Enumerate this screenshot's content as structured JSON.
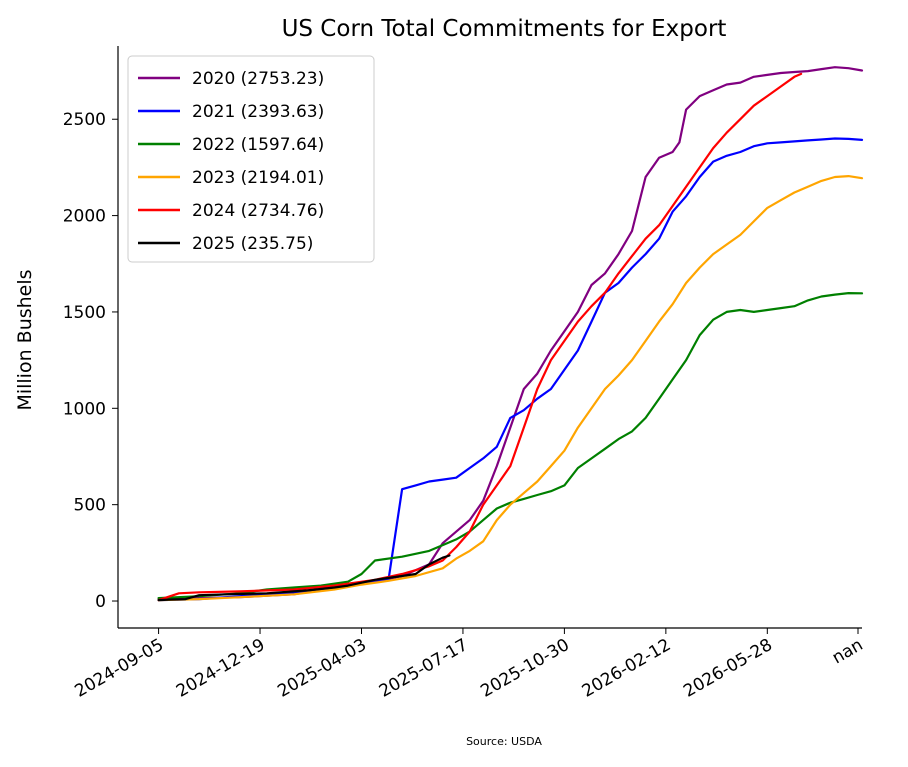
{
  "chart_data": {
    "type": "line",
    "title": "US Corn Total Commitments for Export",
    "ylabel": "Million Bushels",
    "xlabel": "",
    "source": "Source: USDA",
    "ylim": [
      -140,
      2880
    ],
    "yticks": [
      0,
      500,
      1000,
      1500,
      2000,
      2500
    ],
    "xlim": [
      -3,
      52
    ],
    "xticks": [
      {
        "pos": 0,
        "label": "2024-09-05"
      },
      {
        "pos": 7.5,
        "label": "2024-12-19"
      },
      {
        "pos": 15,
        "label": "2025-04-03"
      },
      {
        "pos": 22.5,
        "label": "2025-07-17"
      },
      {
        "pos": 30,
        "label": "2025-10-30"
      },
      {
        "pos": 37.5,
        "label": "2026-02-12"
      },
      {
        "pos": 45,
        "label": "2026-05-28"
      },
      {
        "pos": 52.5,
        "label": "nan"
      }
    ],
    "legend_position": "top-left",
    "grid": false,
    "series": [
      {
        "name": "2020 (2753.23)",
        "color": "#800080",
        "x": [
          0,
          3,
          6,
          10,
          13,
          16,
          18,
          20,
          21,
          23,
          24,
          25,
          26,
          27,
          28,
          29,
          30,
          31,
          32,
          33,
          34,
          35,
          36,
          37,
          38,
          38.5,
          39,
          40,
          41,
          42,
          43,
          44,
          45,
          46,
          47,
          48,
          49,
          50,
          51,
          52
        ],
        "y": [
          10,
          15,
          20,
          35,
          70,
          100,
          130,
          190,
          300,
          420,
          520,
          700,
          900,
          1100,
          1180,
          1300,
          1400,
          1500,
          1640,
          1700,
          1800,
          1920,
          2200,
          2300,
          2330,
          2380,
          2550,
          2620,
          2650,
          2680,
          2690,
          2720,
          2730,
          2740,
          2745,
          2750,
          2760,
          2770,
          2765,
          2753
        ]
      },
      {
        "name": "2021 (2393.63)",
        "color": "#0000ff",
        "x": [
          0,
          3,
          6,
          10,
          13,
          15,
          17,
          18,
          18.5,
          19,
          20,
          21,
          22,
          23,
          24,
          25,
          26,
          27,
          28,
          29,
          30,
          31,
          32,
          33,
          34,
          35,
          36,
          37,
          38,
          39,
          40,
          41,
          42,
          43,
          44,
          45,
          46,
          47,
          48,
          49,
          50,
          51,
          52
        ],
        "y": [
          5,
          10,
          25,
          40,
          70,
          90,
          110,
          580,
          590,
          600,
          620,
          630,
          640,
          690,
          740,
          800,
          950,
          990,
          1050,
          1100,
          1200,
          1300,
          1450,
          1600,
          1650,
          1730,
          1800,
          1880,
          2020,
          2100,
          2200,
          2280,
          2310,
          2330,
          2360,
          2375,
          2380,
          2385,
          2390,
          2395,
          2400,
          2398,
          2393
        ]
      },
      {
        "name": "2022 (1597.64)",
        "color": "#008000",
        "x": [
          0,
          3,
          6,
          8,
          10,
          12,
          14,
          15,
          16,
          18,
          20,
          21,
          22,
          23,
          24,
          25,
          26,
          27,
          28,
          29,
          30,
          31,
          32,
          33,
          34,
          35,
          36,
          37,
          38,
          39,
          40,
          41,
          42,
          43,
          44,
          45,
          46,
          47,
          48,
          49,
          50,
          51,
          52
        ],
        "y": [
          15,
          25,
          40,
          60,
          70,
          80,
          100,
          140,
          210,
          230,
          260,
          290,
          320,
          360,
          420,
          480,
          510,
          530,
          550,
          570,
          600,
          690,
          740,
          790,
          840,
          880,
          950,
          1050,
          1150,
          1250,
          1380,
          1460,
          1500,
          1510,
          1500,
          1510,
          1520,
          1530,
          1560,
          1580,
          1590,
          1598,
          1597
        ]
      },
      {
        "name": "2023 (2194.01)",
        "color": "#ffa500",
        "x": [
          0,
          3,
          6,
          10,
          13,
          15,
          17,
          19,
          21,
          22,
          23,
          24,
          25,
          26,
          27,
          28,
          29,
          30,
          31,
          32,
          33,
          34,
          35,
          36,
          37,
          38,
          39,
          40,
          41,
          42,
          43,
          44,
          45,
          46,
          47,
          48,
          49,
          50,
          51,
          52
        ],
        "y": [
          5,
          10,
          20,
          35,
          60,
          85,
          105,
          130,
          170,
          220,
          260,
          310,
          420,
          500,
          560,
          620,
          700,
          780,
          900,
          1000,
          1100,
          1170,
          1250,
          1350,
          1450,
          1540,
          1650,
          1730,
          1800,
          1850,
          1900,
          1970,
          2040,
          2080,
          2120,
          2150,
          2180,
          2200,
          2205,
          2194
        ]
      },
      {
        "name": "2024 (2734.76)",
        "color": "#ff0000",
        "x": [
          0,
          1.5,
          3,
          6,
          10,
          13,
          16,
          18,
          20,
          21,
          22,
          23,
          24,
          25,
          26,
          27,
          28,
          29,
          30,
          31,
          32,
          33,
          34,
          35,
          36,
          37,
          38,
          39,
          40,
          41,
          42,
          43,
          44,
          45,
          46,
          47,
          47.5
        ],
        "y": [
          5,
          40,
          45,
          50,
          60,
          80,
          110,
          140,
          180,
          210,
          280,
          360,
          500,
          600,
          700,
          900,
          1100,
          1250,
          1350,
          1450,
          1530,
          1600,
          1700,
          1790,
          1880,
          1950,
          2050,
          2150,
          2250,
          2350,
          2430,
          2500,
          2570,
          2620,
          2670,
          2720,
          2735
        ]
      },
      {
        "name": "2025 (235.75)",
        "color": "#000000",
        "x": [
          0,
          1,
          2,
          3,
          5,
          8,
          11,
          13,
          14,
          15,
          16,
          17,
          18,
          19,
          20,
          21,
          21.5
        ],
        "y": [
          5,
          8,
          10,
          30,
          35,
          40,
          55,
          70,
          80,
          95,
          110,
          120,
          130,
          140,
          190,
          225,
          236
        ]
      }
    ]
  }
}
